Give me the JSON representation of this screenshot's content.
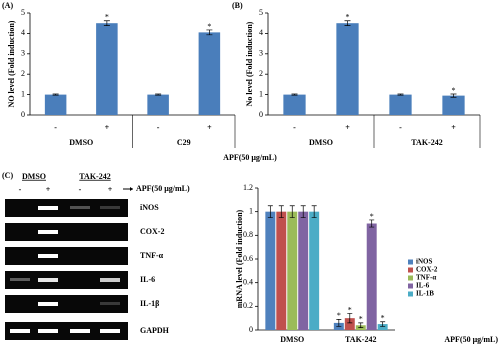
{
  "chart_data": [
    {
      "type": "bar",
      "panel_label": "(A)",
      "ylabel": "NO level (Fold induction)",
      "categories": [
        "-",
        "+",
        "-",
        "+"
      ],
      "groups": [
        "DMSO",
        "C29"
      ],
      "values": [
        1,
        4.5,
        1,
        4.05
      ],
      "errors": [
        0.03,
        0.12,
        0.03,
        0.12
      ],
      "marks": [
        null,
        "*",
        null,
        "*"
      ],
      "color": "#4a7ebb",
      "ylim": [
        0,
        5
      ],
      "yticks": [
        0,
        1,
        2,
        3,
        4,
        5
      ]
    },
    {
      "type": "bar",
      "panel_label": "(B)",
      "ylabel": "No level (Fold induction)",
      "categories": [
        "-",
        "+",
        "-",
        "+"
      ],
      "groups": [
        "DMSO",
        "TAK-242"
      ],
      "values": [
        1,
        4.5,
        1,
        0.95
      ],
      "errors": [
        0.03,
        0.12,
        0.03,
        0.08
      ],
      "marks": [
        null,
        "*",
        null,
        "*"
      ],
      "color": "#4a7ebb",
      "ylim": [
        0,
        5
      ],
      "yticks": [
        0,
        1,
        2,
        3,
        4,
        5
      ]
    },
    {
      "type": "grouped-bar",
      "ylabel": "mRNA level (Fold induction)",
      "xlabel": "APF(50 μg/mL)",
      "categories": [
        "DMSO",
        "TAK-242"
      ],
      "series": [
        {
          "name": "iNOS",
          "color": "#4f81bd",
          "values": [
            1,
            0.06
          ],
          "errors": [
            0.05,
            0.03
          ],
          "marks": [
            null,
            "*"
          ]
        },
        {
          "name": "COX-2",
          "color": "#c0504d",
          "values": [
            1,
            0.1
          ],
          "errors": [
            0.05,
            0.04
          ],
          "marks": [
            null,
            "*"
          ]
        },
        {
          "name": "TNF-α",
          "color": "#9bbb59",
          "values": [
            1,
            0.04
          ],
          "errors": [
            0.05,
            0.02
          ],
          "marks": [
            null,
            "*"
          ]
        },
        {
          "name": "IL-6",
          "color": "#8064a2",
          "values": [
            1,
            0.9
          ],
          "errors": [
            0.05,
            0.03
          ],
          "marks": [
            null,
            "*"
          ]
        },
        {
          "name": "IL-1B",
          "color": "#4bacc6",
          "values": [
            1,
            0.05
          ],
          "errors": [
            0.05,
            0.02
          ],
          "marks": [
            null,
            "*"
          ]
        }
      ],
      "ylim": [
        0,
        1.2
      ],
      "yticks": [
        0,
        0.2,
        0.4,
        0.6,
        0.8,
        1,
        1.2
      ]
    }
  ],
  "shared_xlabel": "APF(50 μg/mL)",
  "gel": {
    "panel_label": "(C)",
    "groups": [
      "DMSO",
      "TAK-242"
    ],
    "lanes": [
      "-",
      "+",
      "-",
      "+"
    ],
    "treatment": "APF(50 μg/mL)",
    "genes": [
      "iNOS",
      "COX-2",
      "TNF-α",
      "IL-6",
      "IL-1β",
      "GAPDH"
    ]
  }
}
